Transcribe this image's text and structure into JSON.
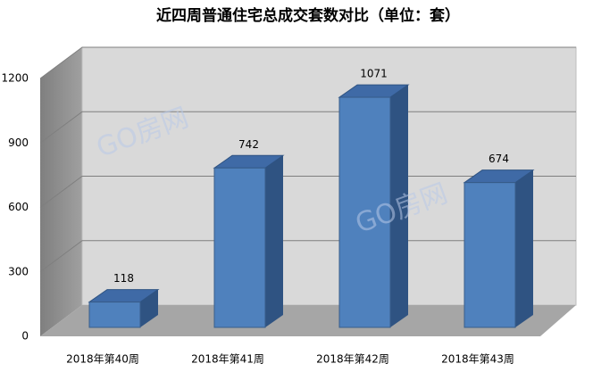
{
  "chart_data": {
    "type": "bar3d",
    "title": "近四周普通住宅总成交套数对比（单位：套）",
    "categories": [
      "2018年第40周",
      "2018年第41周",
      "2018年第42周",
      "2018年第43周"
    ],
    "values": [
      118,
      742,
      1071,
      674
    ],
    "color": "#4f81bd",
    "ylim": [
      0,
      1200
    ],
    "yticks": [
      0,
      300,
      600,
      900,
      1200
    ],
    "grid": true,
    "watermark": "GO房网"
  }
}
